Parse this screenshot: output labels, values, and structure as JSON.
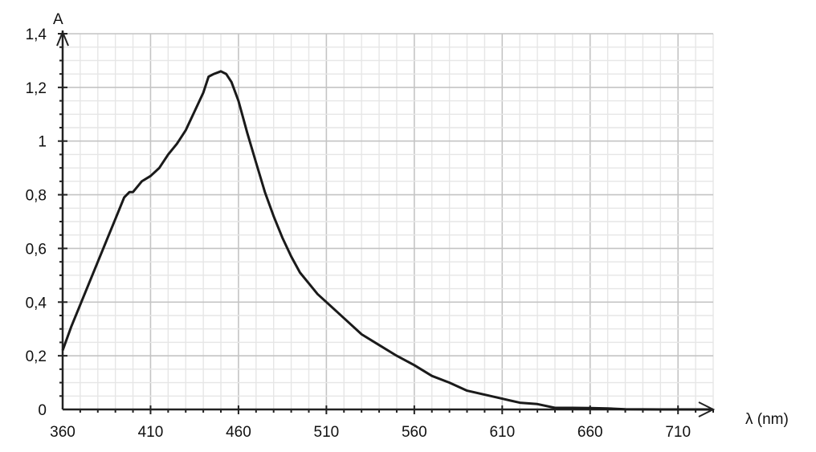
{
  "chart_data": {
    "type": "line",
    "title": "",
    "xlabel": "λ (nm)",
    "ylabel": "A",
    "xlim": [
      360,
      730
    ],
    "ylim": [
      0,
      1.4
    ],
    "grid": true,
    "x_ticks": [
      360,
      410,
      460,
      510,
      560,
      610,
      660,
      710
    ],
    "x_tick_labels": [
      "360",
      "410",
      "460",
      "510",
      "560",
      "610",
      "660",
      "710"
    ],
    "y_ticks": [
      0,
      0.2,
      0.4,
      0.6,
      0.8,
      1,
      1.2,
      1.4
    ],
    "y_tick_labels": [
      "0",
      "0,2",
      "0,4",
      "0,6",
      "0,8",
      "1",
      "1,2",
      "1,4"
    ],
    "line_color": "#1a1a1a",
    "series": [
      {
        "x": [
          360,
          365,
          370,
          375,
          380,
          385,
          390,
          395,
          398,
          400,
          405,
          410,
          415,
          420,
          425,
          430,
          435,
          440,
          443,
          446,
          450,
          453,
          456,
          460,
          465,
          470,
          475,
          480,
          485,
          490,
          495,
          500,
          505,
          510,
          520,
          530,
          540,
          550,
          560,
          570,
          580,
          590,
          600,
          610,
          620,
          630,
          640,
          650,
          660,
          670,
          680,
          700,
          720,
          728
        ],
        "y": [
          0.22,
          0.31,
          0.39,
          0.47,
          0.55,
          0.63,
          0.71,
          0.79,
          0.81,
          0.81,
          0.85,
          0.87,
          0.9,
          0.95,
          0.99,
          1.04,
          1.11,
          1.18,
          1.24,
          1.25,
          1.26,
          1.25,
          1.22,
          1.15,
          1.03,
          0.92,
          0.81,
          0.72,
          0.64,
          0.57,
          0.51,
          0.47,
          0.43,
          0.4,
          0.34,
          0.28,
          0.24,
          0.2,
          0.165,
          0.125,
          0.1,
          0.07,
          0.055,
          0.04,
          0.025,
          0.02,
          0.006,
          0.006,
          0.005,
          0.004,
          0.001,
          0,
          0,
          0
        ]
      }
    ]
  }
}
